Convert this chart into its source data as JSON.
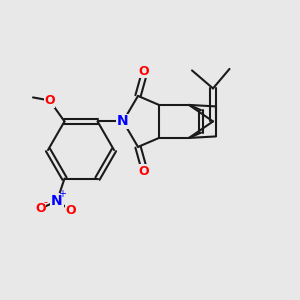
{
  "bg_color": "#e8e8e8",
  "bond_color": "#1a1a1a",
  "bond_lw": 1.5,
  "atom_colors": {
    "O": "#ff0000",
    "N": "#0000ff",
    "C": "#1a1a1a"
  },
  "font_size": 9
}
